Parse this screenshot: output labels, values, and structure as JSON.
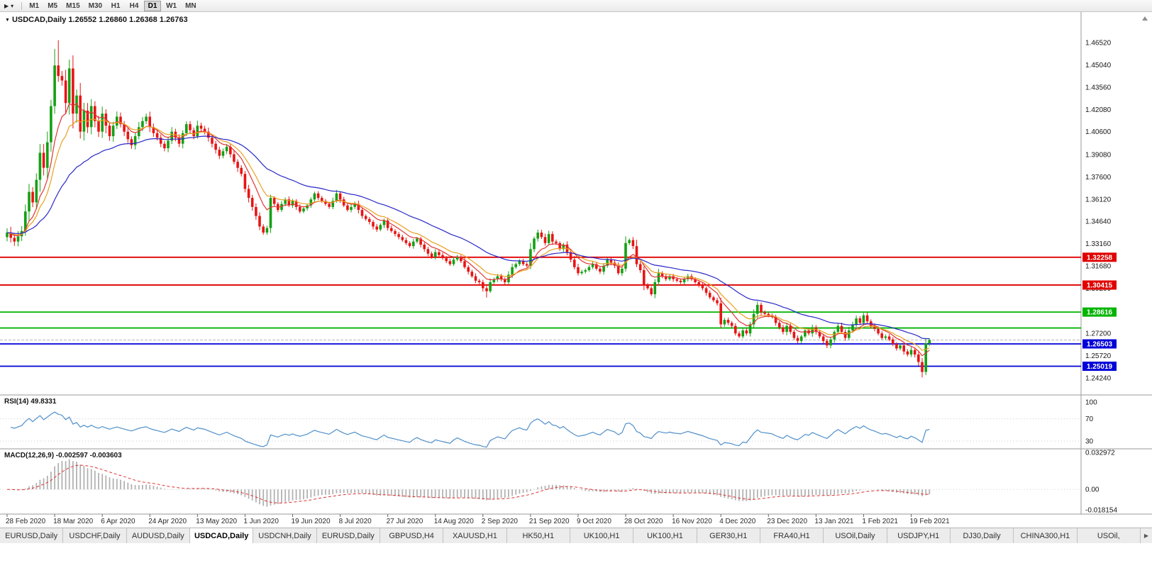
{
  "toolbar": {
    "icons": [
      {
        "name": "chart-cursor-icon",
        "glyph": "▶"
      },
      {
        "name": "toolbar-dropdown-caret-icon",
        "glyph": "▾"
      }
    ],
    "timeframes": [
      "M1",
      "M5",
      "M15",
      "M30",
      "H1",
      "H4",
      "D1",
      "W1",
      "MN"
    ],
    "active_timeframe": "D1"
  },
  "chart": {
    "collapse_glyph": "▼",
    "symbol_text": "USDCAD,Daily 1.26552 1.26860 1.26368 1.26763"
  },
  "rsi": {
    "label": "RSI(14) 49.8331",
    "period": 14,
    "value": 49.8331,
    "levels": [
      "100",
      "70",
      "30"
    ],
    "color": "#4f8fca"
  },
  "macd": {
    "label": "MACD(12,26,9) -0.002597 -0.003603",
    "macd_value": -0.002597,
    "signal_value": -0.003603,
    "axis": [
      "0.032972",
      "0.00",
      "-0.018154"
    ],
    "histogram_color": "#b2b2b2",
    "signal_color": "#e03030"
  },
  "price_axis": {
    "labels": [
      "1.46520",
      "1.45040",
      "1.43560",
      "1.42080",
      "1.40600",
      "1.39080",
      "1.37600",
      "1.36120",
      "1.34640",
      "1.33160",
      "1.31680",
      "1.30200",
      "1.28720",
      "1.27200",
      "1.25720",
      "1.24240"
    ]
  },
  "hlines": [
    {
      "price": 1.32258,
      "label": "1.32258",
      "color": "#e00000"
    },
    {
      "price": 1.30415,
      "label": "1.30415",
      "color": "#e00000"
    },
    {
      "price": 1.28616,
      "label": "1.28616",
      "color": "#00b400"
    },
    {
      "price": 1.2756,
      "label": "",
      "color": "#00b400"
    },
    {
      "price": 1.26503,
      "label": "1.26503",
      "color": "#0000d8"
    },
    {
      "price": 1.25019,
      "label": "1.25019",
      "color": "#0000d8"
    }
  ],
  "dates": [
    "28 Feb 2020",
    "18 Mar 2020",
    "6 Apr 2020",
    "24 Apr 2020",
    "13 May 2020",
    "1 Jun 2020",
    "19 Jun 2020",
    "8 Jul 2020",
    "27 Jul 2020",
    "14 Aug 2020",
    "2 Sep 2020",
    "21 Sep 2020",
    "9 Oct 2020",
    "28 Oct 2020",
    "16 Nov 2020",
    "4 Dec 2020",
    "23 Dec 2020",
    "13 Jan 2021",
    "1 Feb 2021",
    "19 Feb 2021"
  ],
  "tabs": {
    "items": [
      "EURUSD,Daily",
      "USDCHF,Daily",
      "AUDUSD,Daily",
      "USDCAD,Daily",
      "USDCNH,Daily",
      "EURUSD,Daily",
      "GBPUSD,H4",
      "XAUUSD,H1",
      "HK50,H1",
      "UK100,H1",
      "UK100,H1",
      "GER30,H1",
      "FRA40,H1",
      "USOil,Daily",
      "USDJPY,H1",
      "DJ30,Daily",
      "CHINA300,H1",
      "USOil,"
    ],
    "active_index": 3,
    "scroll_right_glyph": "▶"
  },
  "chart_data": {
    "type": "candlestick",
    "symbol": "USDCAD",
    "timeframe": "Daily",
    "last_ohlc": {
      "open": "1.26552",
      "high": "1.26860",
      "low": "1.26368",
      "close": "1.26763"
    },
    "bid": 1.26763,
    "first_open": 1.336,
    "colors": {
      "up": "#14a014",
      "down": "#e81414"
    },
    "closes": [
      1.339,
      1.3355,
      1.333,
      1.3365,
      1.34,
      1.353,
      1.366,
      1.359,
      1.374,
      1.392,
      1.382,
      1.399,
      1.423,
      1.45,
      1.443,
      1.44,
      1.425,
      1.448,
      1.418,
      1.43,
      1.406,
      1.42,
      1.409,
      1.423,
      1.413,
      1.406,
      1.418,
      1.41,
      1.403,
      1.41,
      1.416,
      1.411,
      1.406,
      1.401,
      1.397,
      1.403,
      1.409,
      1.413,
      1.416,
      1.409,
      1.405,
      1.402,
      1.398,
      1.395,
      1.4,
      1.406,
      1.402,
      1.398,
      1.405,
      1.411,
      1.407,
      1.403,
      1.41,
      1.408,
      1.406,
      1.402,
      1.398,
      1.394,
      1.39,
      1.393,
      1.396,
      1.391,
      1.386,
      1.382,
      1.378,
      1.368,
      1.362,
      1.356,
      1.35,
      1.343,
      1.339,
      1.342,
      1.362,
      1.358,
      1.354,
      1.358,
      1.361,
      1.357,
      1.36,
      1.356,
      1.353,
      1.355,
      1.357,
      1.361,
      1.365,
      1.362,
      1.36,
      1.358,
      1.356,
      1.36,
      1.365,
      1.361,
      1.357,
      1.354,
      1.356,
      1.358,
      1.354,
      1.35,
      1.348,
      1.346,
      1.343,
      1.341,
      1.344,
      1.347,
      1.342,
      1.34,
      1.338,
      1.336,
      1.334,
      1.332,
      1.33,
      1.333,
      1.335,
      1.331,
      1.328,
      1.325,
      1.323,
      1.326,
      1.324,
      1.322,
      1.32,
      1.318,
      1.321,
      1.323,
      1.32,
      1.316,
      1.313,
      1.31,
      1.307,
      1.306,
      1.302,
      1.3,
      1.306,
      1.308,
      1.31,
      1.308,
      1.306,
      1.311,
      1.316,
      1.318,
      1.32,
      1.318,
      1.317,
      1.328,
      1.335,
      1.339,
      1.336,
      1.332,
      1.338,
      1.333,
      1.332,
      1.328,
      1.331,
      1.326,
      1.321,
      1.316,
      1.312,
      1.313,
      1.314,
      1.316,
      1.318,
      1.315,
      1.313,
      1.317,
      1.321,
      1.319,
      1.317,
      1.312,
      1.315,
      1.332,
      1.334,
      1.33,
      1.318,
      1.314,
      1.304,
      1.302,
      1.298,
      1.306,
      1.312,
      1.31,
      1.308,
      1.31,
      1.308,
      1.307,
      1.306,
      1.308,
      1.31,
      1.308,
      1.306,
      1.304,
      1.302,
      1.299,
      1.296,
      1.294,
      1.292,
      1.278,
      1.281,
      1.279,
      1.277,
      1.272,
      1.27,
      1.274,
      1.272,
      1.278,
      1.285,
      1.291,
      1.286,
      1.285,
      1.284,
      1.283,
      1.279,
      1.276,
      1.273,
      1.277,
      1.273,
      1.269,
      1.267,
      1.27,
      1.274,
      1.272,
      1.276,
      1.273,
      1.27,
      1.267,
      1.264,
      1.268,
      1.273,
      1.277,
      1.273,
      1.269,
      1.274,
      1.278,
      1.282,
      1.279,
      1.284,
      1.28,
      1.277,
      1.275,
      1.272,
      1.269,
      1.27,
      1.268,
      1.265,
      1.262,
      1.264,
      1.26,
      1.258,
      1.261,
      1.258,
      1.253,
      1.2464,
      1.2655,
      1.2676
    ],
    "special_highs": {
      "14": 1.4668,
      "252": 1.2686
    },
    "special_lows": {
      "131": 1.2958,
      "250": 1.2428,
      "252": 1.2637
    },
    "moving_averages": [
      {
        "period": 8,
        "color": "#e03434"
      },
      {
        "period": 13,
        "color": "#e8a020"
      },
      {
        "period": 34,
        "color": "#2828c8"
      }
    ]
  }
}
